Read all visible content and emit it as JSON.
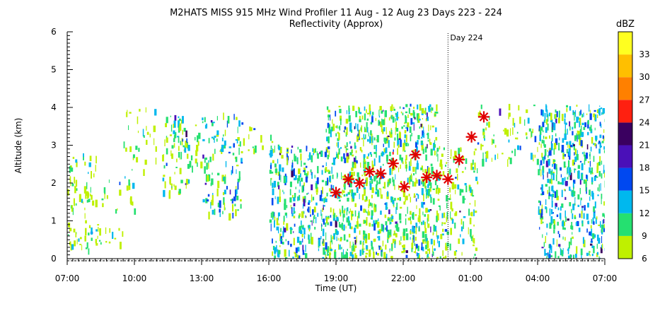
{
  "chart_data": {
    "type": "heatmap",
    "title": "M2HATS MISS 915 MHz Wind Profiler  11 Aug - 12 Aug 23 Days 223 - 224",
    "subtitle": "Reflectivity (Approx)",
    "xlabel": "Time (UT)",
    "ylabel": "Altitude (km)",
    "x_ticks": [
      "07:00",
      "10:00",
      "13:00",
      "16:00",
      "19:00",
      "22:00",
      "01:00",
      "04:00",
      "07:00"
    ],
    "x_range_hours": [
      7,
      31
    ],
    "y_ticks": [
      "0",
      "1",
      "2",
      "3",
      "4",
      "5",
      "6"
    ],
    "ylim": [
      0,
      6
    ],
    "day_marker": {
      "label": "Day 224",
      "hour": 24
    },
    "colorbar": {
      "label": "dBZ",
      "ticks": [
        "6",
        "9",
        "12",
        "15",
        "18",
        "21",
        "24",
        "27",
        "30",
        "33"
      ],
      "range": [
        6,
        36
      ],
      "colors": [
        "#bff000",
        "#25e070",
        "#00b8ee",
        "#0048f0",
        "#4a10b8",
        "#3a0060",
        "#ff2010",
        "#ff8000",
        "#ffbf00",
        "#ffff20"
      ]
    },
    "marker_points": [
      {
        "hour": 19.0,
        "alt_km": 1.75
      },
      {
        "hour": 19.55,
        "alt_km": 2.1
      },
      {
        "hour": 20.05,
        "alt_km": 2.0
      },
      {
        "hour": 20.5,
        "alt_km": 2.3
      },
      {
        "hour": 21.0,
        "alt_km": 2.25
      },
      {
        "hour": 21.55,
        "alt_km": 2.52
      },
      {
        "hour": 22.05,
        "alt_km": 1.9
      },
      {
        "hour": 22.55,
        "alt_km": 2.75
      },
      {
        "hour": 23.05,
        "alt_km": 2.15
      },
      {
        "hour": 23.5,
        "alt_km": 2.2
      },
      {
        "hour": 24.0,
        "alt_km": 2.1
      },
      {
        "hour": 24.5,
        "alt_km": 2.62
      },
      {
        "hour": 25.05,
        "alt_km": 3.22
      },
      {
        "hour": 25.6,
        "alt_km": 3.75
      }
    ],
    "echo_regions": [
      {
        "h0": 7.0,
        "h1": 8.3,
        "a0": 0.25,
        "a1": 2.8,
        "density": 0.35,
        "mean_dbz": 7
      },
      {
        "h0": 8.3,
        "h1": 10.0,
        "a0": 1.3,
        "a1": 2.2,
        "density": 0.25,
        "mean_dbz": 7
      },
      {
        "h0": 7.0,
        "h1": 9.5,
        "a0": 0.3,
        "a1": 1.0,
        "density": 0.3,
        "mean_dbz": 7
      },
      {
        "h0": 9.5,
        "h1": 11.0,
        "a0": 2.3,
        "a1": 4.1,
        "density": 0.2,
        "mean_dbz": 7
      },
      {
        "h0": 11.2,
        "h1": 12.4,
        "a0": 1.7,
        "a1": 3.8,
        "density": 0.55,
        "mean_dbz": 10
      },
      {
        "h0": 12.4,
        "h1": 13.0,
        "a0": 2.3,
        "a1": 3.6,
        "density": 0.3,
        "mean_dbz": 8
      },
      {
        "h0": 13.0,
        "h1": 14.8,
        "a0": 1.2,
        "a1": 3.9,
        "density": 0.45,
        "mean_dbz": 11
      },
      {
        "h0": 14.8,
        "h1": 16.5,
        "a0": 2.8,
        "a1": 3.6,
        "density": 0.2,
        "mean_dbz": 7
      },
      {
        "h0": 16.0,
        "h1": 18.5,
        "a0": 0.0,
        "a1": 3.0,
        "density": 0.7,
        "mean_dbz": 12
      },
      {
        "h0": 18.5,
        "h1": 23.5,
        "a0": 0.0,
        "a1": 4.1,
        "density": 0.8,
        "mean_dbz": 10
      },
      {
        "h0": 23.5,
        "h1": 25.3,
        "a0": 0.0,
        "a1": 3.0,
        "density": 0.45,
        "mean_dbz": 8
      },
      {
        "h0": 25.3,
        "h1": 28.5,
        "a0": 2.6,
        "a1": 4.1,
        "density": 0.3,
        "mean_dbz": 8
      },
      {
        "h0": 28.0,
        "h1": 31.0,
        "a0": 0.0,
        "a1": 4.1,
        "density": 0.75,
        "mean_dbz": 12
      }
    ]
  }
}
